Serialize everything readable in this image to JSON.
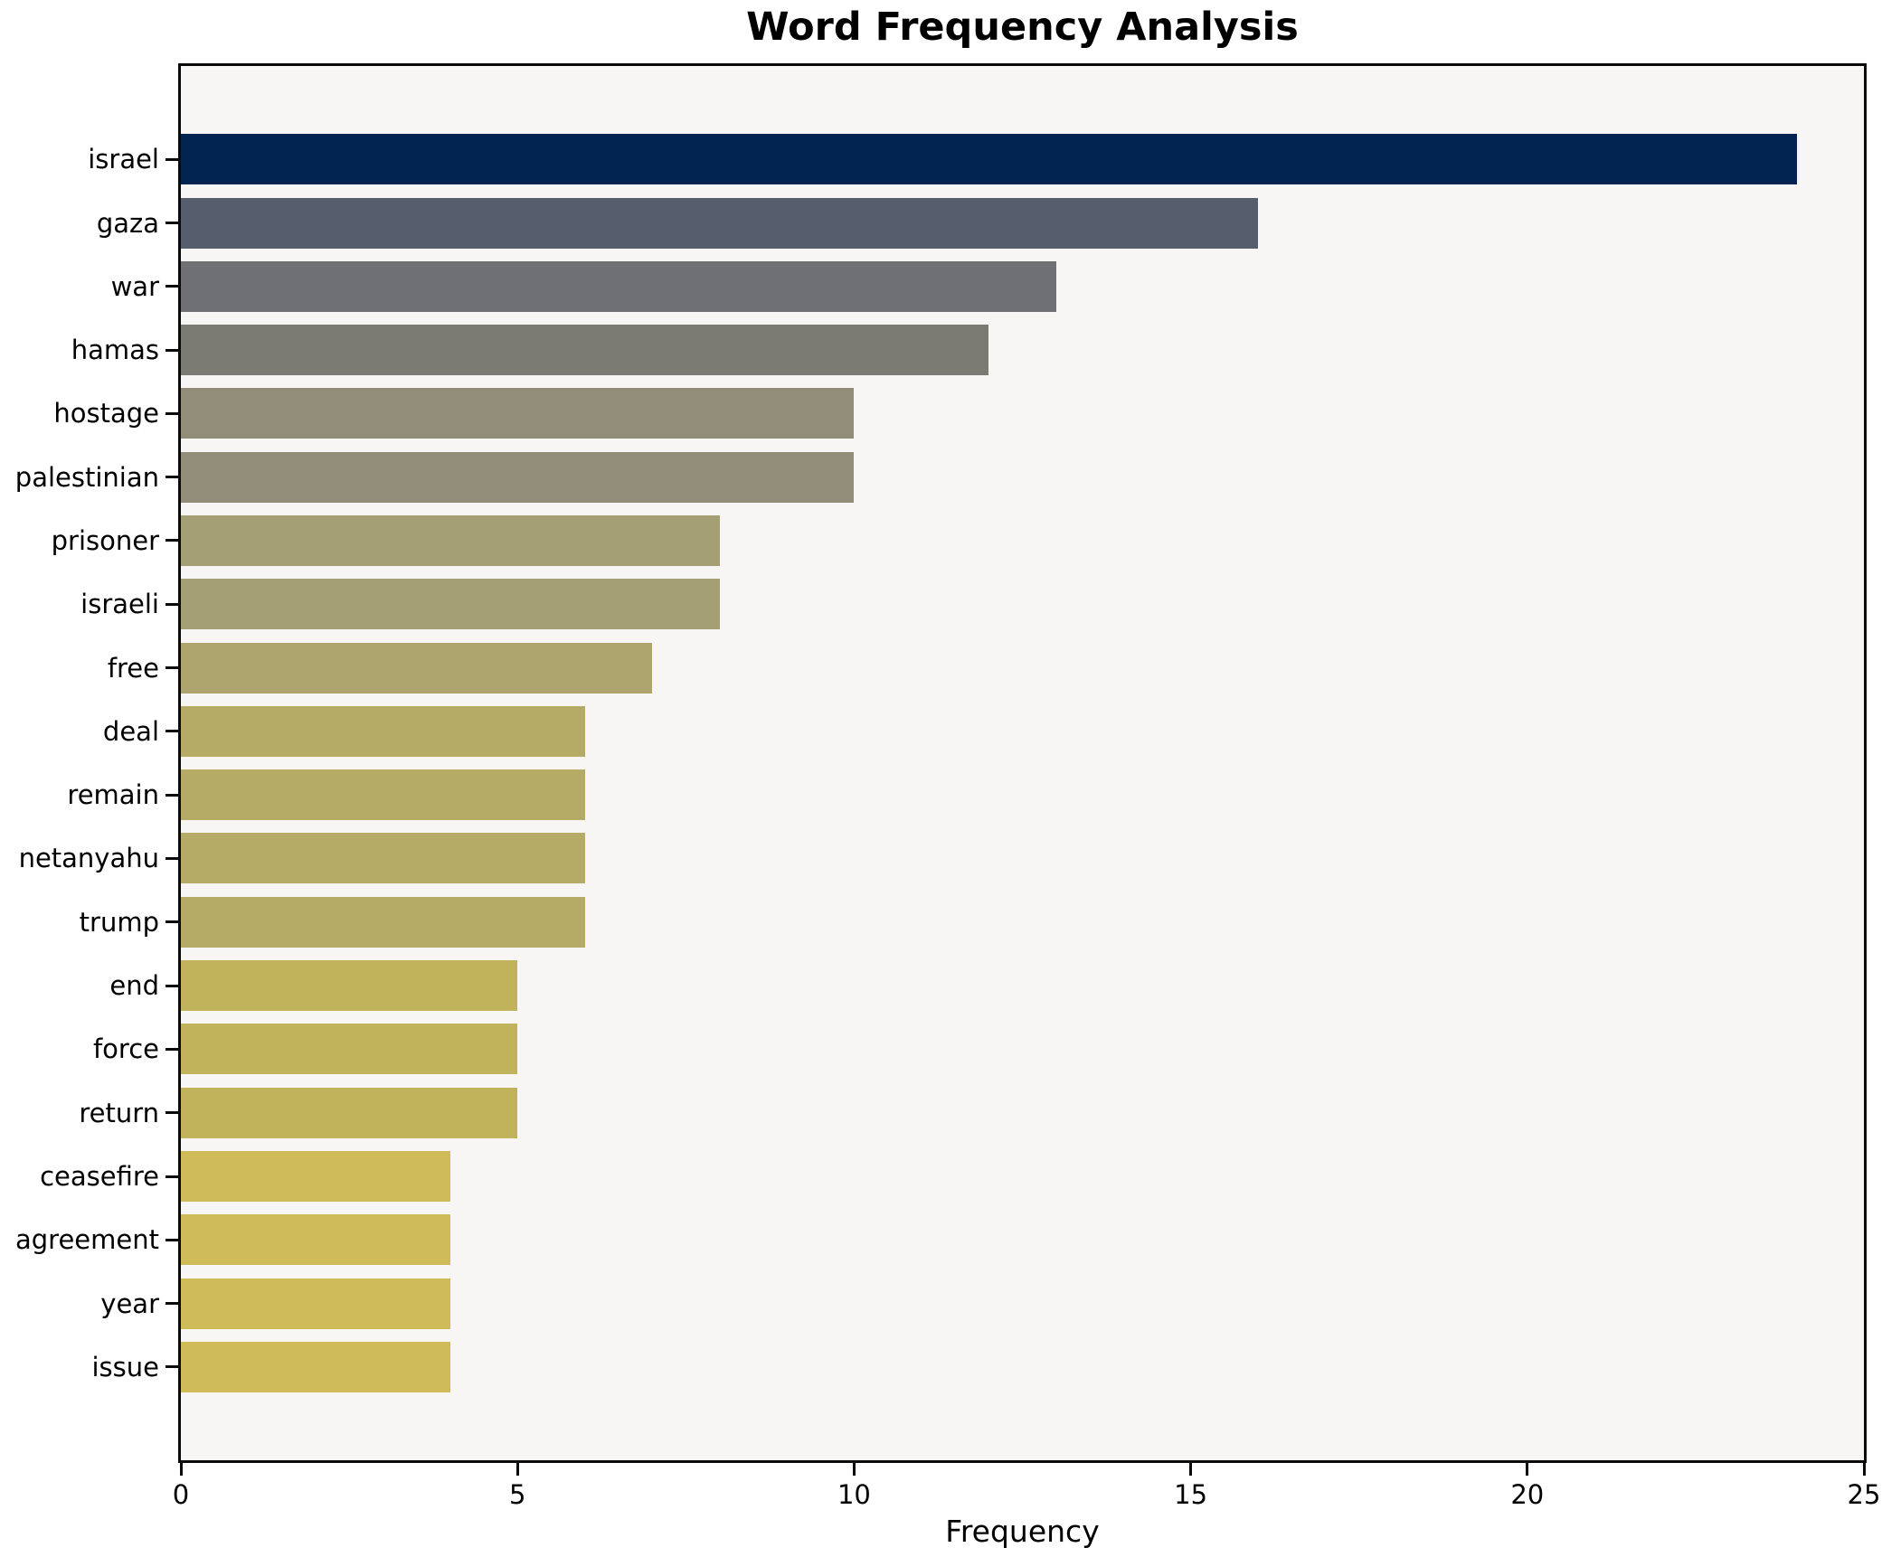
{
  "chart_data": {
    "type": "bar",
    "orientation": "horizontal",
    "title": "Word Frequency Analysis",
    "xlabel": "Frequency",
    "ylabel": "",
    "categories": [
      "israel",
      "gaza",
      "war",
      "hamas",
      "hostage",
      "palestinian",
      "prisoner",
      "israeli",
      "free",
      "deal",
      "remain",
      "netanyahu",
      "trump",
      "end",
      "force",
      "return",
      "ceasefire",
      "agreement",
      "year",
      "issue"
    ],
    "values": [
      24,
      16,
      13,
      12,
      10,
      10,
      8,
      8,
      7,
      6,
      6,
      6,
      6,
      5,
      5,
      5,
      4,
      4,
      4,
      4
    ],
    "bar_colors": [
      "#012451",
      "#565d6d",
      "#6f7073",
      "#7b7b74",
      "#918d79",
      "#918d79",
      "#a49e74",
      "#a49e74",
      "#ada46e",
      "#b5ab66",
      "#b5ab66",
      "#b5ab66",
      "#b5ab66",
      "#c1b25c",
      "#c1b25c",
      "#c1b25c",
      "#cfbc59",
      "#cfbc59",
      "#cfbc59",
      "#cfbc59"
    ],
    "xlim": [
      0,
      25
    ],
    "xticks": [
      0,
      5,
      10,
      15,
      20,
      25
    ],
    "grid": false,
    "legend": null,
    "colormap": "cividis-reversed-by-value",
    "plot_background": "#f7f6f4",
    "figure_background": "#ffffff",
    "spine_color": "#0a0a0a",
    "bars_total": 20
  }
}
